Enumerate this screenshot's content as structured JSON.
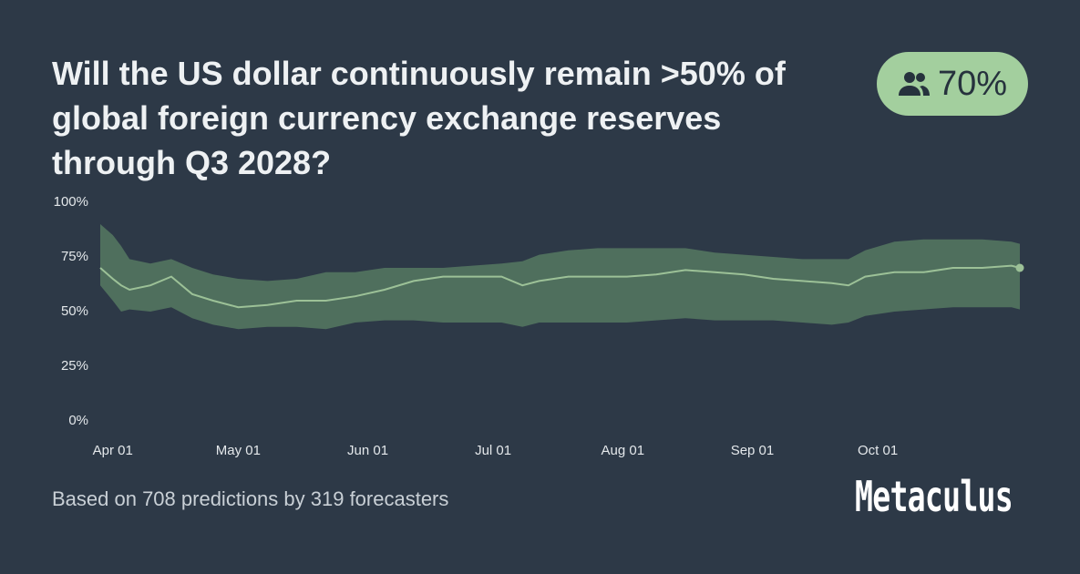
{
  "title": "Will the US dollar continuously remain >50% of global foreign currency exchange reserves through Q3 2028?",
  "badge": "70%",
  "footer": "Based on 708 predictions by 319 forecasters",
  "brand": "Metaculus",
  "chart_data": {
    "type": "line",
    "x": [
      "Mar 29",
      "Apr 01",
      "Apr 03",
      "Apr 05",
      "Apr 10",
      "Apr 15",
      "Apr 20",
      "Apr 25",
      "May 01",
      "May 08",
      "May 15",
      "May 22",
      "May 29",
      "Jun 05",
      "Jun 12",
      "Jun 19",
      "Jun 26",
      "Jul 03",
      "Jul 08",
      "Jul 12",
      "Jul 19",
      "Jul 26",
      "Aug 02",
      "Aug 09",
      "Aug 16",
      "Aug 23",
      "Aug 30",
      "Sep 06",
      "Sep 13",
      "Sep 20",
      "Sep 24",
      "Sep 28",
      "Oct 05",
      "Oct 12",
      "Oct 19",
      "Oct 26",
      "Nov 02",
      "Nov 04"
    ],
    "values": [
      70,
      65,
      62,
      60,
      62,
      66,
      58,
      55,
      52,
      53,
      55,
      55,
      57,
      60,
      64,
      66,
      66,
      66,
      62,
      64,
      66,
      66,
      66,
      67,
      69,
      68,
      67,
      65,
      64,
      63,
      62,
      66,
      68,
      68,
      70,
      70,
      71,
      70
    ],
    "lower": [
      62,
      55,
      50,
      51,
      50,
      52,
      47,
      44,
      42,
      43,
      43,
      42,
      45,
      46,
      46,
      45,
      45,
      45,
      43,
      45,
      45,
      45,
      45,
      46,
      47,
      46,
      46,
      46,
      45,
      44,
      45,
      48,
      50,
      51,
      52,
      52,
      52,
      51
    ],
    "upper": [
      90,
      85,
      80,
      74,
      72,
      74,
      70,
      67,
      65,
      64,
      65,
      68,
      68,
      70,
      70,
      70,
      71,
      72,
      73,
      76,
      78,
      79,
      79,
      79,
      79,
      77,
      76,
      75,
      74,
      74,
      74,
      78,
      82,
      83,
      83,
      83,
      82,
      81
    ],
    "line_color": "#9cc197",
    "band_color": "#4f6f5d",
    "xlim": [
      "Mar 29",
      "Nov 04"
    ],
    "xticks": [
      "Apr 01",
      "May 01",
      "Jun 01",
      "Jul 01",
      "Aug 01",
      "Sep 01",
      "Oct 01"
    ],
    "ylim": [
      0,
      100
    ],
    "yticks": [
      {
        "value": 0,
        "label": "0%"
      },
      {
        "value": 25,
        "label": "25%"
      },
      {
        "value": 50,
        "label": "50%"
      },
      {
        "value": 75,
        "label": "75%"
      },
      {
        "value": 100,
        "label": "100%"
      }
    ]
  }
}
